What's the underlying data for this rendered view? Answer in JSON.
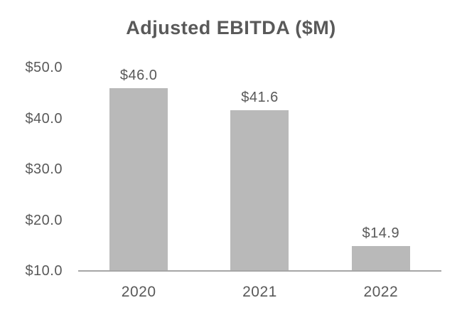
{
  "chart_data": {
    "type": "bar",
    "title": "Adjusted EBITDA ($M)",
    "categories": [
      "2020",
      "2021",
      "2022"
    ],
    "values": [
      46.0,
      41.6,
      14.9
    ],
    "value_labels": [
      "$46.0",
      "$41.6",
      "$14.9"
    ],
    "xlabel": "",
    "ylabel": "",
    "ylim": [
      10,
      50
    ],
    "yticks": [
      {
        "value": 50,
        "label": "$50.0"
      },
      {
        "value": 40,
        "label": "$40.0"
      },
      {
        "value": 30,
        "label": "$30.0"
      },
      {
        "value": 20,
        "label": "$20.0"
      },
      {
        "value": 10,
        "label": "$10.0"
      }
    ],
    "grid": false,
    "legend": "none",
    "colors": {
      "bar": "#b9b9b9",
      "axis_line": "#a6a6a6",
      "text": "#595959"
    }
  }
}
